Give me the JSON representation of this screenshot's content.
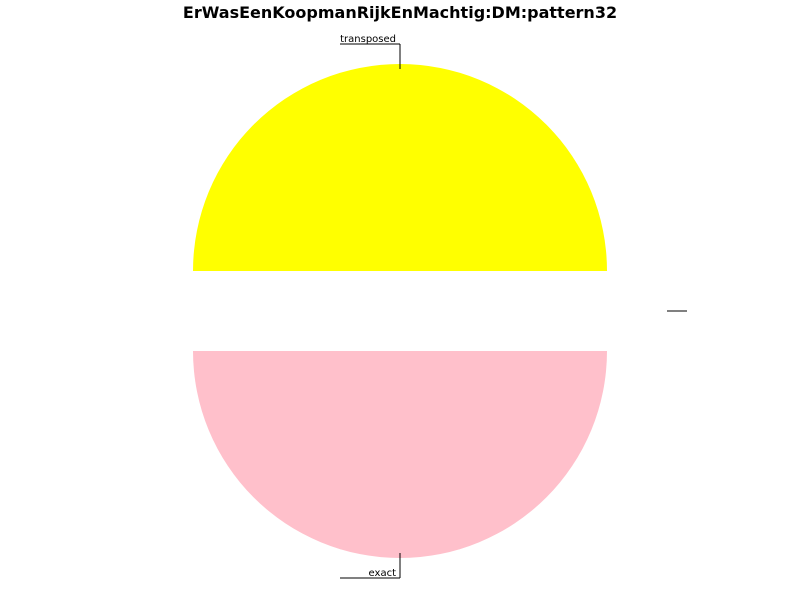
{
  "chart_data": {
    "type": "pie",
    "title": "ErWasEenKoopmanRijkEnMachtig:DM:pattern32",
    "slices": [
      {
        "label": "transposed",
        "value": 50,
        "color": "#ffff00"
      },
      {
        "label": "exact",
        "value": 50,
        "color": "#ffc0cb"
      },
      {
        "label": "",
        "value": 0,
        "color": "#000000"
      },
      {
        "label": "",
        "value": 0,
        "color": "#000000"
      }
    ]
  }
}
